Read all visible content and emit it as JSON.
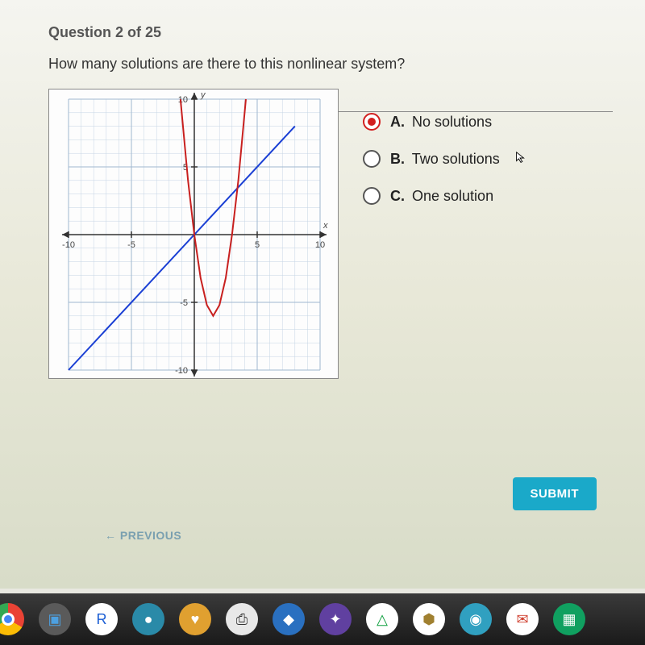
{
  "question": {
    "header": "Question 2 of 25",
    "text": "How many solutions are there to this nonlinear system?"
  },
  "chart": {
    "type": "line",
    "xlim": [
      -10,
      10
    ],
    "ylim": [
      -10,
      10
    ],
    "xtick_labels": [
      "-10",
      "-5",
      "5",
      "10"
    ],
    "ytick_labels": [
      "-10",
      "-5",
      "5",
      "10"
    ],
    "xtick_positions": [
      -10,
      -5,
      5,
      10
    ],
    "ytick_positions": [
      -10,
      -5,
      5,
      10
    ],
    "axis_label_x": "x",
    "axis_label_y": "y",
    "background_color": "#fdfdfd",
    "grid_color": "#c4d4e4",
    "grid_major_color": "#a0b8d0",
    "axis_color": "#333333",
    "label_fontsize": 11,
    "line_series": {
      "color": "#1a3fd4",
      "width": 2,
      "points": [
        [
          -10,
          -10
        ],
        [
          8,
          8
        ]
      ]
    },
    "parabola_series": {
      "color": "#c8201f",
      "width": 2,
      "vertex": [
        1.5,
        -6
      ],
      "points": [
        [
          -1.1,
          10
        ],
        [
          -0.5,
          4
        ],
        [
          0,
          0
        ],
        [
          0.5,
          -3.2
        ],
        [
          1,
          -5.2
        ],
        [
          1.5,
          -6
        ],
        [
          2,
          -5.2
        ],
        [
          2.5,
          -3.2
        ],
        [
          3,
          0
        ],
        [
          3.5,
          4
        ],
        [
          4.1,
          10
        ]
      ]
    }
  },
  "answers": {
    "options": [
      {
        "letter": "A.",
        "text": "No solutions",
        "selected": true
      },
      {
        "letter": "B.",
        "text": "Two solutions",
        "selected": false
      },
      {
        "letter": "C.",
        "text": "One solution",
        "selected": false
      }
    ]
  },
  "buttons": {
    "submit": "SUBMIT",
    "previous": "PREVIOUS"
  },
  "shelf": {
    "icons": [
      {
        "name": "chrome",
        "glyph": "◉",
        "bg": "transparent",
        "fg": "#ffffff"
      },
      {
        "name": "files",
        "glyph": "▣",
        "bg": "#5a5a5a",
        "fg": "#4da0e0"
      },
      {
        "name": "app-blue-r",
        "glyph": "R",
        "bg": "#ffffff",
        "fg": "#1a5dd4"
      },
      {
        "name": "app-teal",
        "glyph": "●",
        "bg": "#2a8aa8",
        "fg": "#ffffff"
      },
      {
        "name": "app-orange",
        "glyph": "♥",
        "bg": "#e0a030",
        "fg": "#ffffff"
      },
      {
        "name": "app-print",
        "glyph": "⎙",
        "bg": "#e8e8e8",
        "fg": "#333333"
      },
      {
        "name": "app-blue-icon",
        "glyph": "◆",
        "bg": "#2a70c0",
        "fg": "#ffffff"
      },
      {
        "name": "app-purple",
        "glyph": "✦",
        "bg": "#6040a0",
        "fg": "#ffffff"
      },
      {
        "name": "drive",
        "glyph": "△",
        "bg": "#ffffff",
        "fg": "#10a040"
      },
      {
        "name": "app-keep",
        "glyph": "⬢",
        "bg": "#ffffff",
        "fg": "#a08030"
      },
      {
        "name": "camera",
        "glyph": "◉",
        "bg": "#30a0c0",
        "fg": "#ffffff"
      },
      {
        "name": "gmail",
        "glyph": "✉",
        "bg": "#ffffff",
        "fg": "#d04030"
      },
      {
        "name": "sheets",
        "glyph": "▦",
        "bg": "#10a060",
        "fg": "#ffffff"
      }
    ]
  }
}
